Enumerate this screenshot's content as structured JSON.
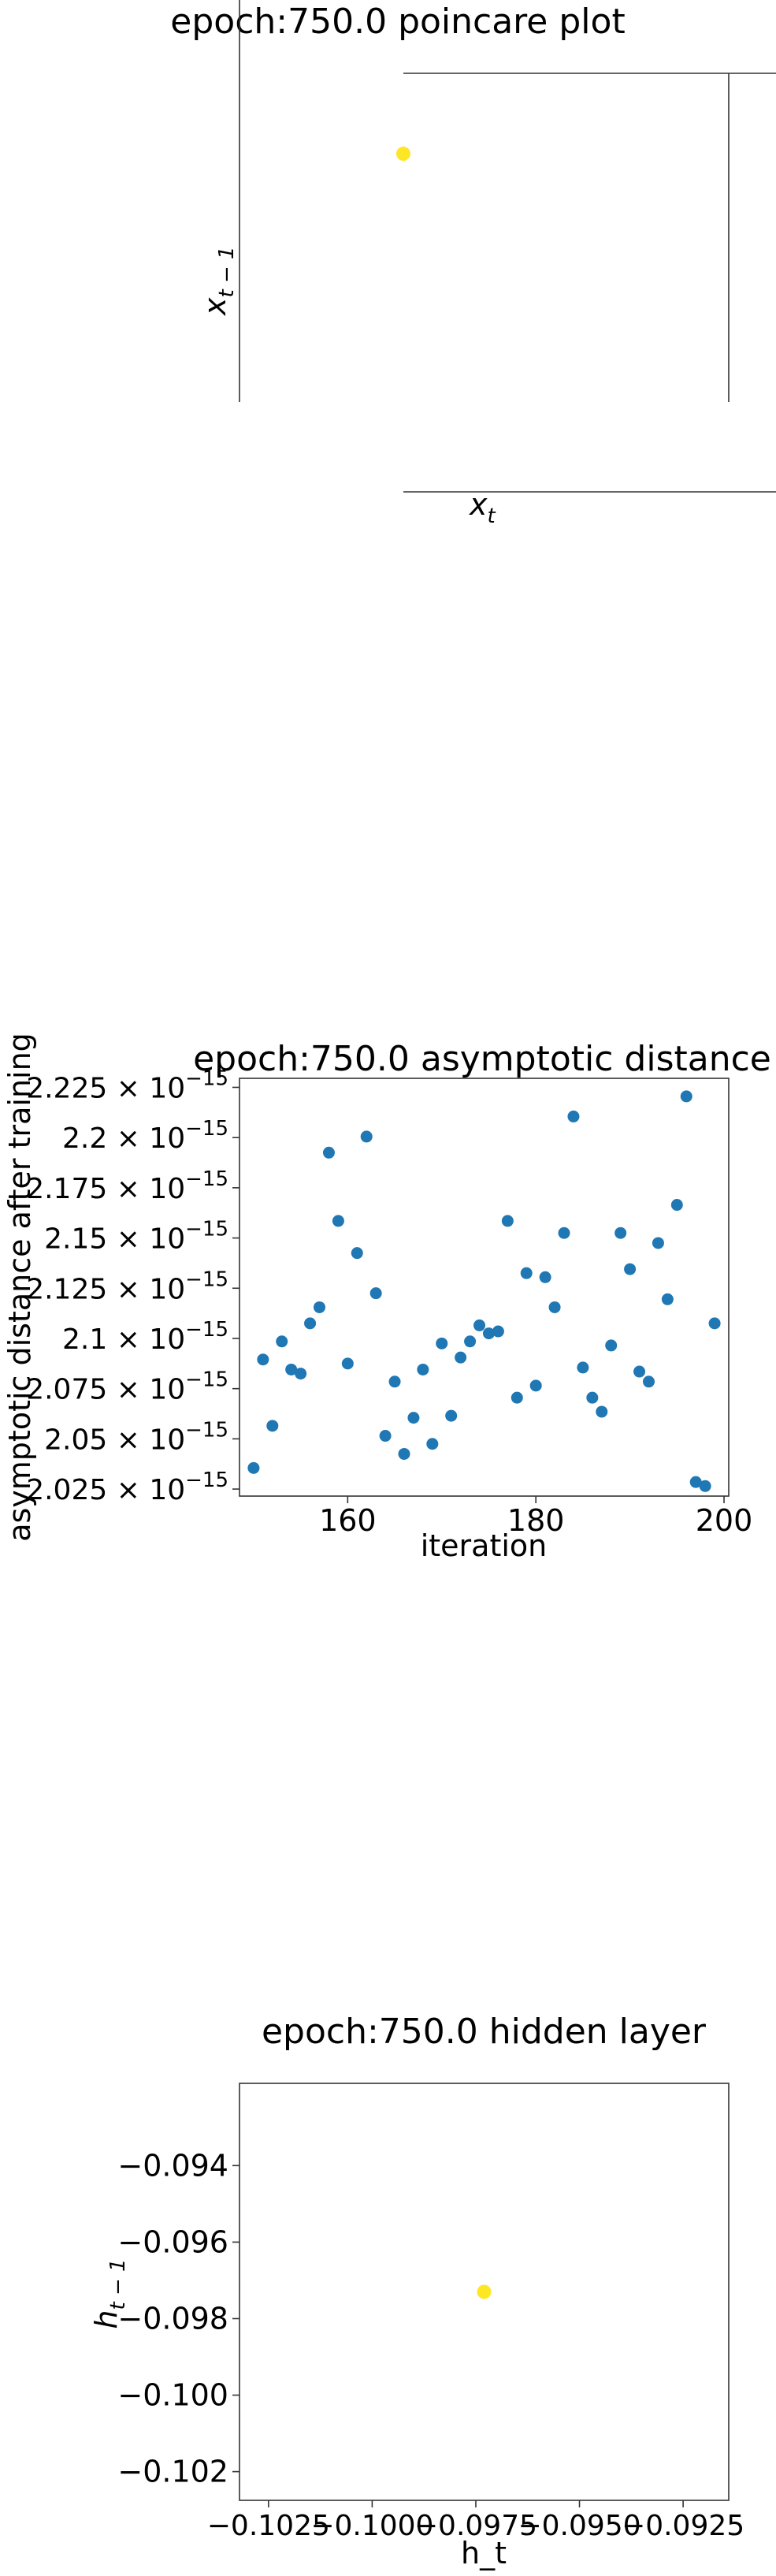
{
  "chart_data": [
    {
      "type": "scatter",
      "title": "epoch:750.0 poincare plot",
      "xlabel": "x_t",
      "ylabel": "x_{t-1}",
      "marker_color": "#fde725",
      "points": [
        {
          "x": 0,
          "y": 0
        }
      ]
    },
    {
      "type": "scatter",
      "title": "epoch:750.0 asymptotic distance",
      "xlabel": "iteration",
      "ylabel": "asymptotic distance after training",
      "marker_color": "#1f77b4",
      "xlim": [
        148.5,
        200.5
      ],
      "ylim": [
        2.0215,
        2.2295
      ],
      "y_exponent": "-15",
      "xticks": [
        160,
        180,
        200
      ],
      "yticks": [
        2.025,
        2.05,
        2.075,
        2.1,
        2.125,
        2.15,
        2.175,
        2.2,
        2.225
      ],
      "ytick_labels": [
        "2.025",
        "2.05",
        "2.075",
        "2.1",
        "2.125",
        "2.15",
        "2.175",
        "2.2",
        "2.225"
      ],
      "x": [
        150,
        151,
        152,
        153,
        154,
        155,
        156,
        157,
        158,
        159,
        160,
        161,
        162,
        163,
        164,
        165,
        166,
        167,
        168,
        169,
        170,
        171,
        172,
        173,
        174,
        175,
        176,
        177,
        178,
        179,
        180,
        181,
        182,
        183,
        184,
        185,
        186,
        187,
        188,
        189,
        190,
        191,
        192,
        193,
        194,
        195,
        196,
        197,
        198,
        199
      ],
      "y": [
        2.0355,
        2.0895,
        2.0565,
        2.0985,
        2.0845,
        2.0825,
        2.1075,
        2.1155,
        2.1925,
        2.1585,
        2.0875,
        2.1425,
        2.2005,
        2.1225,
        2.0515,
        2.0785,
        2.0425,
        2.0605,
        2.0845,
        2.0475,
        2.0975,
        2.0615,
        2.0905,
        2.0985,
        2.1065,
        2.1025,
        2.1035,
        2.1585,
        2.0705,
        2.1325,
        2.0765,
        2.1305,
        2.1155,
        2.1525,
        2.2105,
        2.0855,
        2.0705,
        2.0635,
        2.0965,
        2.1525,
        2.1345,
        2.0835,
        2.0785,
        2.1475,
        2.1195,
        2.1665,
        2.2205,
        2.0285,
        2.0265,
        2.1075
      ]
    },
    {
      "type": "scatter",
      "title": "epoch:750.0 hidden layer",
      "xlabel": "h_t",
      "ylabel": "h_{t-1}",
      "marker_color": "#fde725",
      "xlim": [
        -0.1032,
        -0.0914
      ],
      "ylim": [
        -0.10275,
        -0.09185
      ],
      "xticks": [
        -0.1025,
        -0.1,
        -0.0975,
        -0.095,
        -0.0925
      ],
      "xtick_labels": [
        "−0.1025",
        "−0.1000",
        "−0.0975",
        "−0.0950",
        "−0.0925"
      ],
      "yticks": [
        -0.094,
        -0.096,
        -0.098,
        -0.1,
        -0.102
      ],
      "ytick_labels": [
        "−0.094",
        "−0.096",
        "−0.098",
        "−0.100",
        "−0.102"
      ],
      "points": [
        {
          "x": -0.0973,
          "y": -0.0973
        }
      ]
    }
  ]
}
